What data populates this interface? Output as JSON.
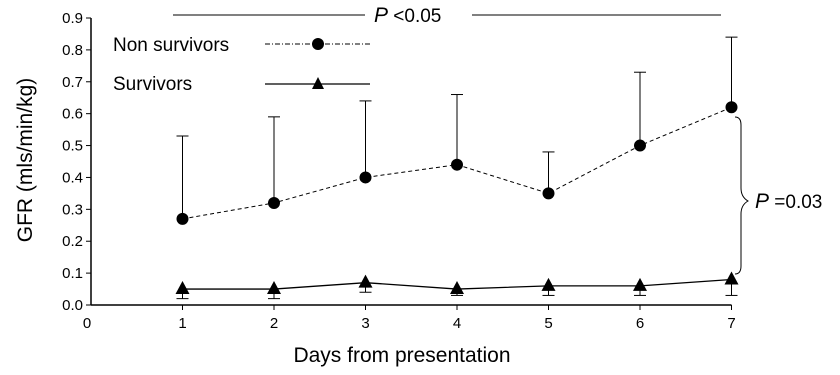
{
  "chart_data": {
    "type": "line",
    "xlabel": "Days from presentation",
    "ylabel": "GFR (mls/min/kg)",
    "xlim": [
      0,
      7
    ],
    "ylim": [
      0,
      0.9
    ],
    "x_ticks": [
      "0",
      "1",
      "2",
      "3",
      "4",
      "5",
      "6",
      "7"
    ],
    "y_ticks": [
      "0.0",
      "0.1",
      "0.2",
      "0.3",
      "0.4",
      "0.5",
      "0.6",
      "0.7",
      "0.8",
      "0.9"
    ],
    "x": [
      1,
      2,
      3,
      4,
      5,
      6,
      7
    ],
    "series": [
      {
        "name": "Non survivors",
        "marker": "circle",
        "line_style": "dashed",
        "values": [
          0.27,
          0.32,
          0.4,
          0.44,
          0.35,
          0.5,
          0.62
        ],
        "error_upper": [
          0.53,
          0.59,
          0.64,
          0.66,
          0.48,
          0.73,
          0.84
        ]
      },
      {
        "name": "Survivors",
        "marker": "triangle",
        "line_style": "solid",
        "values": [
          0.05,
          0.05,
          0.07,
          0.05,
          0.06,
          0.06,
          0.08
        ],
        "error_lower": [
          0.02,
          0.02,
          0.04,
          0.03,
          0.03,
          0.03,
          0.03
        ]
      }
    ],
    "legend_position": "top-left",
    "grid": false,
    "annotations": {
      "top": {
        "p_label": "P",
        "value_text": " <0.05"
      },
      "right": {
        "p_label": "P",
        "value_text": " =0.03"
      }
    }
  }
}
